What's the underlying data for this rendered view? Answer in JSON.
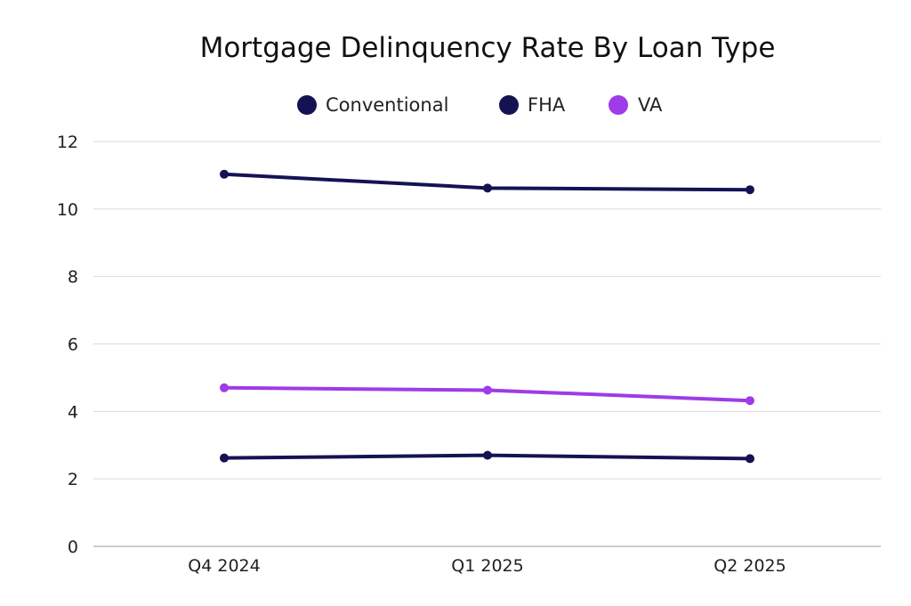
{
  "chart_data": {
    "type": "line",
    "title": "Mortgage Delinquency Rate By Loan Type",
    "xlabel": "",
    "ylabel": "",
    "categories": [
      "Q4 2024",
      "Q1 2025",
      "Q2 2025"
    ],
    "ylim": [
      0,
      12
    ],
    "yticks": [
      0,
      2,
      4,
      6,
      8,
      10,
      12
    ],
    "grid": true,
    "legend_position": "top-center",
    "series": [
      {
        "name": "Conventional",
        "color": "#151254",
        "values": [
          2.62,
          2.7,
          2.6
        ]
      },
      {
        "name": "FHA",
        "color": "#151254",
        "values": [
          11.03,
          10.62,
          10.57
        ]
      },
      {
        "name": "VA",
        "color": "#9f3be8",
        "values": [
          4.7,
          4.63,
          4.32
        ]
      }
    ]
  }
}
